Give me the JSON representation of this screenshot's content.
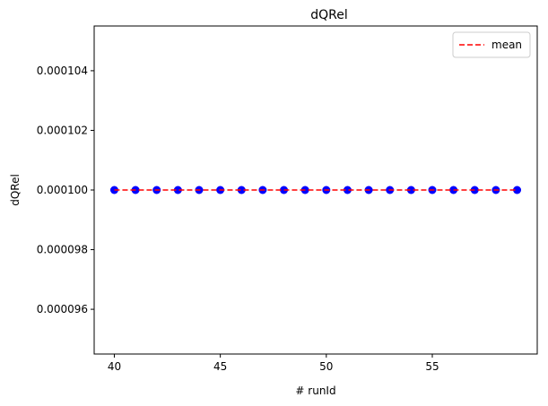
{
  "chart_data": {
    "type": "scatter",
    "title": "dQRel",
    "xlabel": "# runId",
    "ylabel": "dQRel",
    "x": [
      40,
      41,
      42,
      43,
      44,
      45,
      46,
      47,
      48,
      49,
      50,
      51,
      52,
      53,
      54,
      55,
      56,
      57,
      58,
      59
    ],
    "series": [
      {
        "values": [
          0.0001,
          0.0001,
          0.0001,
          0.0001,
          0.0001,
          0.0001,
          0.0001,
          0.0001,
          0.0001,
          0.0001,
          0.0001,
          0.0001,
          0.0001,
          0.0001,
          0.0001,
          0.0001,
          0.0001,
          0.0001,
          0.0001,
          0.0001
        ],
        "color": "#0000ff",
        "marker": "circle"
      },
      {
        "name": "mean",
        "type": "line",
        "values": [
          0.0001,
          0.0001,
          0.0001,
          0.0001,
          0.0001,
          0.0001,
          0.0001,
          0.0001,
          0.0001,
          0.0001,
          0.0001,
          0.0001,
          0.0001,
          0.0001,
          0.0001,
          0.0001,
          0.0001,
          0.0001,
          0.0001,
          0.0001
        ],
        "color": "#ff0000",
        "linestyle": "dashed"
      }
    ],
    "xlim": [
      39.05,
      59.95
    ],
    "ylim": [
      9.45e-05,
      0.0001055
    ],
    "xticks": [
      40,
      45,
      50,
      55
    ],
    "xtick_labels": [
      "40",
      "45",
      "50",
      "55"
    ],
    "yticks": [
      9.6e-05,
      9.8e-05,
      0.0001,
      0.000102,
      0.000104
    ],
    "ytick_labels": [
      "0.000096",
      "0.000098",
      "0.000100",
      "0.000102",
      "0.000104"
    ],
    "legend": {
      "entries": [
        "mean"
      ],
      "position": "top-right"
    },
    "grid": false
  }
}
